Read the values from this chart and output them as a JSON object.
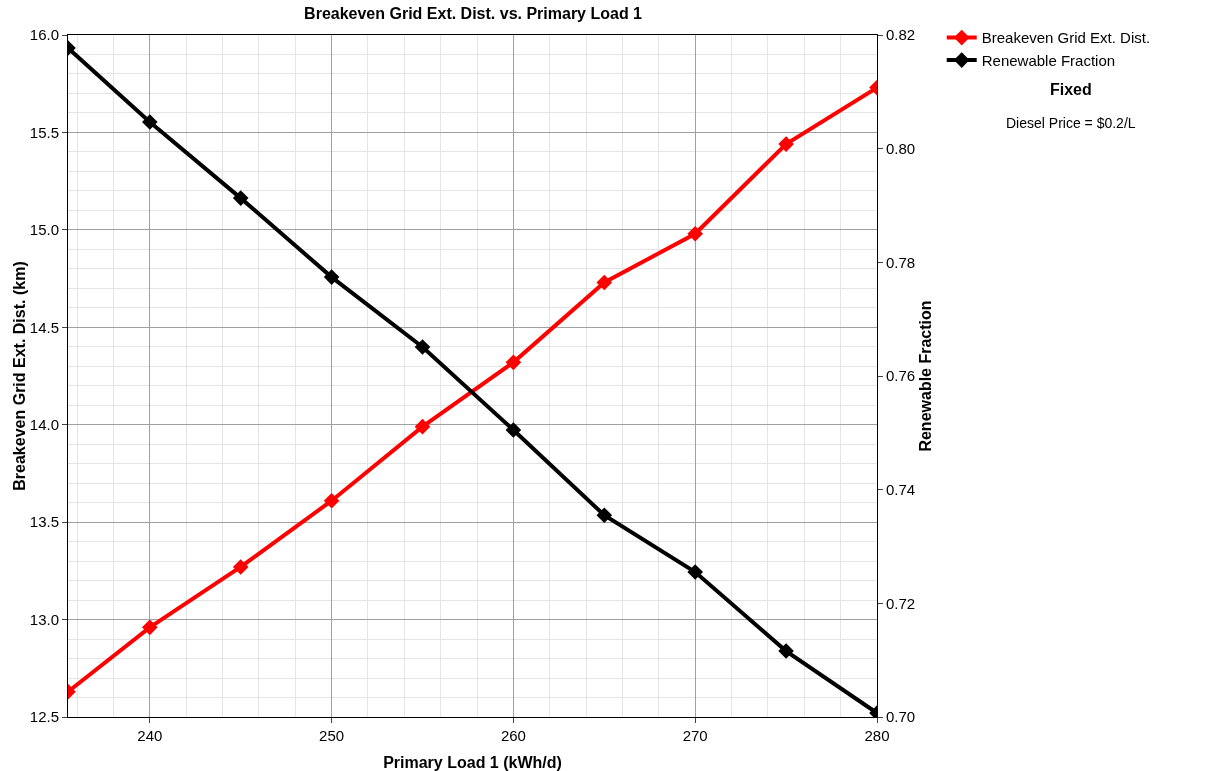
{
  "chart_data": {
    "type": "line",
    "title": "Breakeven Grid Ext. Dist. vs. Primary Load 1",
    "xlabel": "Primary Load 1 (kWh/d)",
    "ylabel": "Breakeven Grid Ext. Dist. (km)",
    "y2label": "Renewable Fraction",
    "x": [
      235.5,
      240,
      245,
      250,
      255,
      260,
      265,
      270,
      275,
      280
    ],
    "series": [
      {
        "name": "Breakeven Grid Ext. Dist.",
        "color": "#ff0000",
        "values": [
          12.63,
          12.96,
          13.27,
          13.61,
          13.99,
          14.32,
          14.73,
          14.98,
          15.44,
          15.73
        ]
      },
      {
        "name": "Renewable Fraction",
        "color": "#000000",
        "axis": "y2",
        "values": [
          0.8177,
          0.8047,
          0.7913,
          0.7774,
          0.7651,
          0.7505,
          0.7355,
          0.7255,
          0.7116,
          0.7007
        ]
      }
    ],
    "xlim": [
      235.5,
      280
    ],
    "xticks": [
      240,
      250,
      260,
      270,
      280
    ],
    "ylim": [
      12.5,
      16
    ],
    "yticks": [
      12.5,
      {
        "value": 13,
        "label": "13.0"
      },
      13.5,
      {
        "value": 14,
        "label": "14.0"
      },
      14.5,
      {
        "value": 15,
        "label": "15.0"
      },
      15.5,
      {
        "value": 16,
        "label": "16.0"
      }
    ],
    "y2lim": [
      0.7,
      0.82
    ],
    "y2ticks": [
      {
        "value": 0.7,
        "label": "0.70"
      },
      0.72,
      0.74,
      0.76,
      0.78,
      {
        "value": 0.8,
        "label": "0.80"
      },
      0.82
    ],
    "annotations": [
      "Fixed",
      "Diesel Price = $0.2/L"
    ],
    "grid": true,
    "legend": "top right",
    "marker": "diamond",
    "line_style": "solid"
  }
}
